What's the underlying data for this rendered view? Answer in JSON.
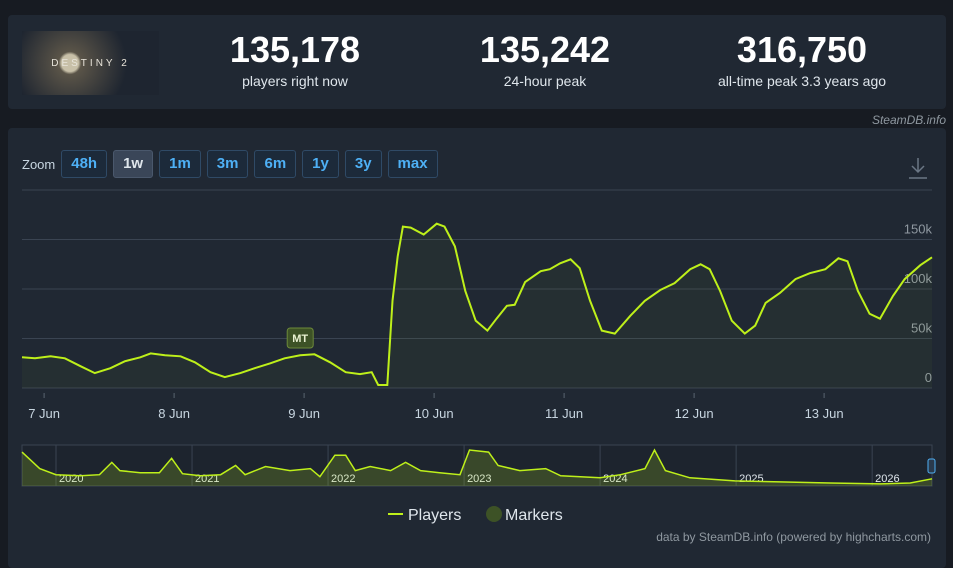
{
  "game_logo": "DESTINY 2",
  "stats": [
    {
      "value": "135,178",
      "label": "players right now"
    },
    {
      "value": "135,242",
      "label": "24-hour peak"
    },
    {
      "value": "316,750",
      "label": "all-time peak 3.3 years ago"
    }
  ],
  "credit": "SteamDB.info",
  "zoom": {
    "label": "Zoom",
    "buttons": [
      "48h",
      "1w",
      "1m",
      "3m",
      "6m",
      "1y",
      "3y",
      "max"
    ],
    "active": "1w"
  },
  "chart_data": [
    {
      "type": "line",
      "series": [
        {
          "name": "Players",
          "color": "#bef01a",
          "x": [
            6.83,
            6.93,
            7.05,
            7.16,
            7.28,
            7.39,
            7.51,
            7.62,
            7.74,
            7.82,
            7.93,
            8.05,
            8.16,
            8.28,
            8.39,
            8.51,
            8.62,
            8.74,
            8.85,
            8.97,
            9.08,
            9.2,
            9.32,
            9.43,
            9.52,
            9.57,
            9.64,
            9.68,
            9.72,
            9.76,
            9.82,
            9.92,
            10.02,
            10.08,
            10.16,
            10.24,
            10.32,
            10.41,
            10.48,
            10.56,
            10.62,
            10.7,
            10.82,
            10.89,
            10.97,
            11.05,
            11.12,
            11.2,
            11.29,
            11.39,
            11.51,
            11.62,
            11.74,
            11.85,
            11.97,
            12.05,
            12.12,
            12.2,
            12.29,
            12.39,
            12.47,
            12.55,
            12.66,
            12.78,
            12.89,
            13.01,
            13.11,
            13.18,
            13.26,
            13.35,
            13.43,
            13.53,
            13.62,
            13.74,
            13.83
          ],
          "values": [
            31000,
            30000,
            32000,
            30000,
            22000,
            15000,
            20000,
            27000,
            31000,
            35000,
            33000,
            32000,
            26000,
            16000,
            11000,
            15000,
            20000,
            25000,
            30000,
            33000,
            34000,
            26000,
            16000,
            14000,
            16000,
            3000,
            3000,
            88000,
            133000,
            163000,
            162000,
            155000,
            166000,
            163000,
            143000,
            98000,
            68000,
            58000,
            70000,
            83000,
            84000,
            107000,
            118000,
            120000,
            126000,
            130000,
            121000,
            88000,
            58000,
            55000,
            73000,
            88000,
            99000,
            106000,
            120000,
            125000,
            120000,
            98000,
            68000,
            55000,
            63000,
            86000,
            96000,
            110000,
            116000,
            120000,
            131000,
            128000,
            98000,
            75000,
            70000,
            93000,
            110000,
            124000,
            132000
          ]
        },
        {
          "name": "Markers",
          "color": "#3d5226",
          "x": [
            8.97
          ],
          "value_labels": [
            "MT"
          ]
        }
      ],
      "xlim": [
        6.83,
        13.83
      ],
      "xticks": [
        {
          "value": 7,
          "label": "7 Jun"
        },
        {
          "value": 8,
          "label": "8 Jun"
        },
        {
          "value": 9,
          "label": "9 Jun"
        },
        {
          "value": 10,
          "label": "10 Jun"
        },
        {
          "value": 11,
          "label": "11 Jun"
        },
        {
          "value": 12,
          "label": "12 Jun"
        },
        {
          "value": 13,
          "label": "13 Jun"
        }
      ],
      "ylim": [
        0,
        200000
      ],
      "yticks": [
        0,
        {
          "value": 50000,
          "label": "50k"
        },
        {
          "value": 100000,
          "label": "100k"
        },
        {
          "value": 150000,
          "label": "150k"
        }
      ],
      "grid": true
    },
    {
      "type": "line",
      "series": [
        {
          "name": "Players",
          "color": "#bef01a",
          "x": [
            2019.75,
            2019.88,
            2020,
            2020.18,
            2020.32,
            2020.41,
            2020.47,
            2020.62,
            2020.76,
            2020.85,
            2020.93,
            2021.06,
            2021.21,
            2021.32,
            2021.39,
            2021.54,
            2021.72,
            2021.87,
            2021.94,
            2022.05,
            2022.13,
            2022.2,
            2022.31,
            2022.46,
            2022.57,
            2022.68,
            2022.82,
            2022.97,
            2023.04,
            2023.18,
            2023.25,
            2023.41,
            2023.6,
            2023.71,
            2024,
            2024.15,
            2024.33,
            2024.4,
            2024.48,
            2024.66,
            2024.99,
            2025.32,
            2025.69,
            2026.06,
            2026.28,
            2026.44
          ],
          "values": [
            278000,
            143000,
            93000,
            84000,
            93000,
            194000,
            126000,
            109000,
            109000,
            227000,
            101000,
            84000,
            93000,
            168000,
            93000,
            160000,
            126000,
            143000,
            76000,
            253000,
            253000,
            126000,
            160000,
            126000,
            194000,
            126000,
            109000,
            93000,
            295000,
            278000,
            168000,
            126000,
            143000,
            84000,
            67000,
            93000,
            143000,
            295000,
            126000,
            67000,
            42000,
            34000,
            25000,
            17000,
            25000,
            59000
          ]
        }
      ],
      "xlim": [
        2019.75,
        2026.44
      ],
      "xticks": [
        2020,
        2021,
        2022,
        2023,
        2024,
        2025,
        2026
      ],
      "ylim": [
        0,
        320000
      ]
    }
  ],
  "footer": "data by SteamDB.info (powered by highcharts.com)"
}
